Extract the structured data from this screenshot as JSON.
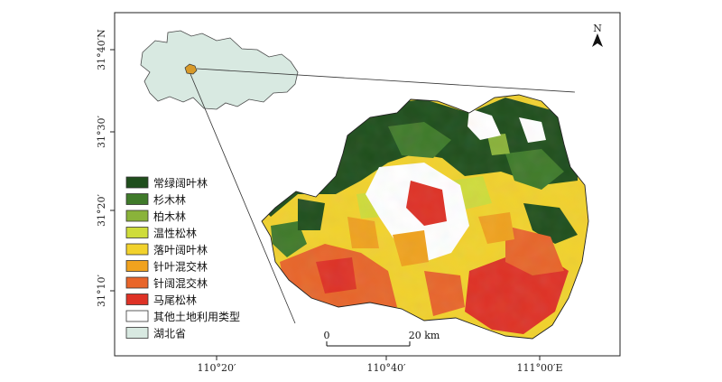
{
  "axes": {
    "x_ticks": [
      "110°20′",
      "110°40′",
      "111°00′E"
    ],
    "y_ticks": [
      "31°40′N",
      "31°30′",
      "31°20′",
      "31°10′"
    ]
  },
  "north_arrow": {
    "label": "N"
  },
  "scale_bar": {
    "start_label": "0",
    "end_label": "20 km"
  },
  "legend": [
    {
      "label": "常绿阔叶林",
      "color": "#1f4e1c"
    },
    {
      "label": "杉木林",
      "color": "#3f7a2a"
    },
    {
      "label": "柏木林",
      "color": "#8ab33a"
    },
    {
      "label": "温性松林",
      "color": "#cfdc3a"
    },
    {
      "label": "落叶阔叶林",
      "color": "#f2d22c"
    },
    {
      "label": "针叶混交林",
      "color": "#f0a21e"
    },
    {
      "label": "针阔混交林",
      "color": "#e8652a"
    },
    {
      "label": "马尾松林",
      "color": "#de3226"
    },
    {
      "label": "其他土地利用类型",
      "color": "#ffffff"
    },
    {
      "label": "湖北省",
      "color": "#d8e9e1"
    }
  ]
}
